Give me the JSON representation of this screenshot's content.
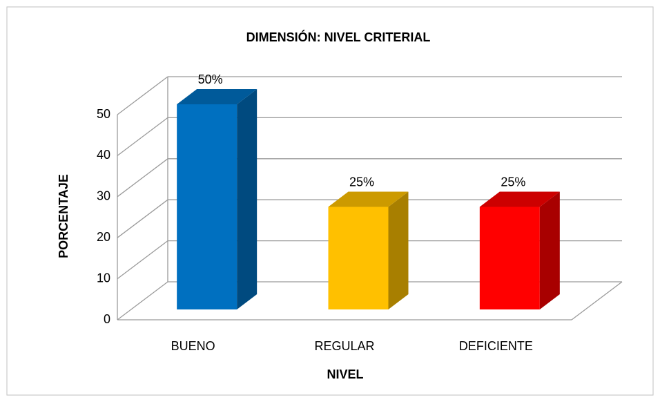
{
  "chart_data": {
    "type": "bar3d",
    "title": "DIMENSIÓN: NIVEL CRITERIAL",
    "x_label": "NIVEL",
    "y_label": "PORCENTAJE",
    "categories": [
      "BUENO",
      "REGULAR",
      "DEFICIENTE"
    ],
    "values": [
      50,
      25,
      25
    ],
    "value_labels": [
      "50%",
      "25%",
      "25%"
    ],
    "colors": [
      "#0070c0",
      "#ffc000",
      "#ff0000"
    ],
    "ylim": [
      0,
      50
    ],
    "yticks": [
      0,
      10,
      20,
      30,
      40,
      50
    ],
    "grid": true
  }
}
